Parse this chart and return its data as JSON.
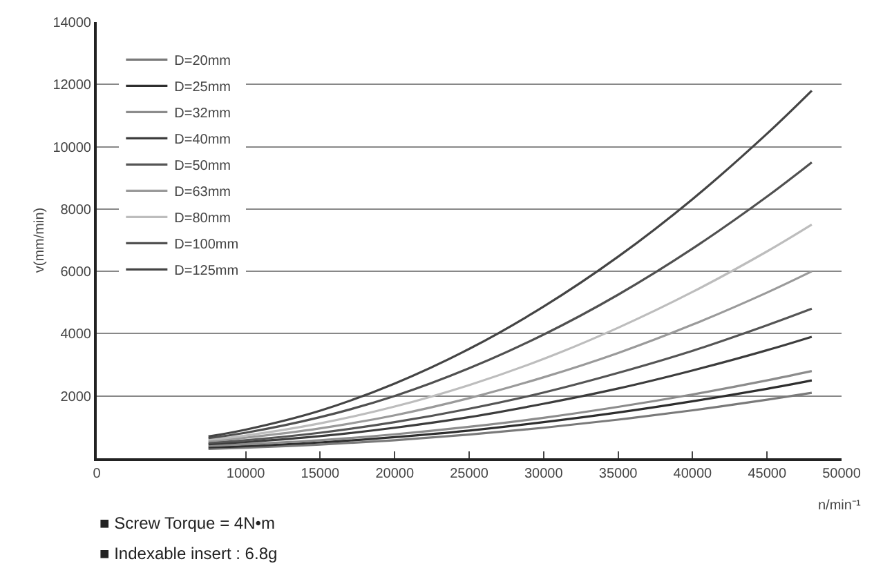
{
  "chart_data": {
    "type": "line",
    "xlabel": "n/min⁻¹",
    "ylabel": "v(mm/min)",
    "x": [
      7500,
      10000,
      15000,
      20000,
      25000,
      30000,
      35000,
      40000,
      45000,
      48000
    ],
    "series": [
      {
        "name": "D=20mm",
        "color": "#7a7a7a",
        "values": [
          300,
          340,
          440,
          580,
          760,
          980,
          1240,
          1540,
          1880,
          2100
        ]
      },
      {
        "name": "D=25mm",
        "color": "#2e2e2e",
        "values": [
          350,
          390,
          510,
          680,
          890,
          1160,
          1470,
          1830,
          2230,
          2500
        ]
      },
      {
        "name": "D=32mm",
        "color": "#8c8c8c",
        "values": [
          400,
          450,
          580,
          770,
          1010,
          1300,
          1650,
          2050,
          2500,
          2800
        ]
      },
      {
        "name": "D=40mm",
        "color": "#3c3c3c",
        "values": [
          450,
          520,
          710,
          980,
          1320,
          1750,
          2240,
          2820,
          3470,
          3900
        ]
      },
      {
        "name": "D=50mm",
        "color": "#555555",
        "values": [
          500,
          580,
          820,
          1160,
          1590,
          2110,
          2740,
          3450,
          4270,
          4800
        ]
      },
      {
        "name": "D=63mm",
        "color": "#9a9a9a",
        "values": [
          550,
          660,
          960,
          1380,
          1930,
          2600,
          3380,
          4290,
          5320,
          6000
        ]
      },
      {
        "name": "D=80mm",
        "color": "#bdbdbd",
        "values": [
          600,
          730,
          1120,
          1660,
          2350,
          3190,
          4190,
          5340,
          6640,
          7500
        ]
      },
      {
        "name": "D=100mm",
        "color": "#505050",
        "values": [
          650,
          820,
          1320,
          2000,
          2890,
          3970,
          5250,
          6730,
          8400,
          9500
        ]
      },
      {
        "name": "D=125mm",
        "color": "#444444",
        "values": [
          700,
          920,
          1530,
          2400,
          3510,
          4870,
          6470,
          8320,
          10420,
          11800
        ]
      }
    ],
    "xlim": [
      0,
      50000
    ],
    "xticks": [
      0,
      10000,
      15000,
      20000,
      25000,
      30000,
      35000,
      40000,
      45000,
      50000
    ],
    "ylim": [
      0,
      14000
    ],
    "yticks": [
      2000,
      4000,
      6000,
      8000,
      10000,
      12000,
      14000
    ],
    "grid": "y",
    "legend": "top left",
    "marker": "none",
    "line_style": "solid",
    "annotations": [
      "■ Screw Torque = 4N•m",
      "■ Indexable insert : 6.8g"
    ]
  }
}
